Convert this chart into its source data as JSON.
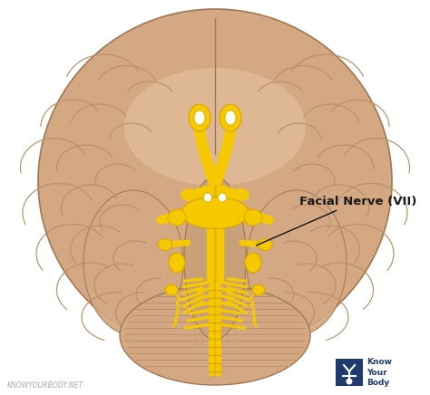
{
  "bg_color": "#ffffff",
  "brain_color": "#d4a882",
  "brain_highlight": "#e8c9a8",
  "brain_shadow": "#b8906a",
  "brain_dark": "#c09870",
  "nerve_color": "#f5c800",
  "nerve_dark": "#d4a500",
  "brainstem_color": "#c8a07a",
  "brainstem_light": "#dbb892",
  "label_text": "Facial Nerve (VII)",
  "label_fontsize": 9.5,
  "watermark_text": "KNOWYOURBODY.NET",
  "watermark_fontsize": 5.5,
  "logo_text": "Know\nYour\nBody",
  "logo_fontsize": 6.5,
  "annotation_arrow_color": "#111111",
  "brain_outline_color": "#a07850"
}
